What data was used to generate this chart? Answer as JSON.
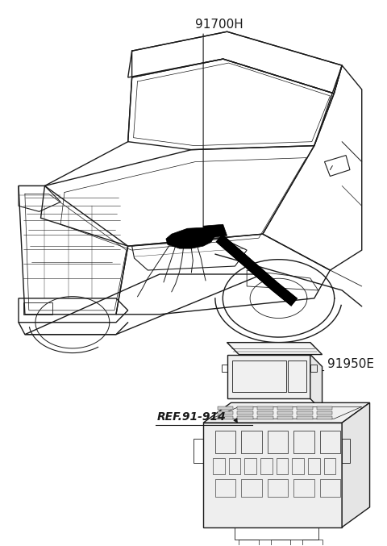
{
  "title": "",
  "background_color": "#ffffff",
  "line_color": "#1a1a1a",
  "label_91700H": "91700H",
  "label_91950E": "91950E",
  "label_ref": "REF.91-914",
  "fig_width": 4.8,
  "fig_height": 6.77,
  "dpi": 100
}
